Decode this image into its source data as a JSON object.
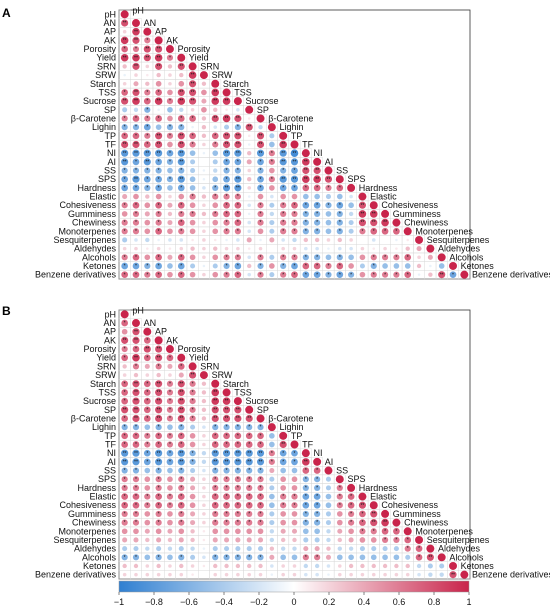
{
  "panels": [
    {
      "letter": "A",
      "variables": [
        "pH",
        "AN",
        "AP",
        "AK",
        "Porosity",
        "Yield",
        "SRN",
        "SRW",
        "Starch",
        "TSS",
        "Sucrose",
        "SP",
        "β-Carotene",
        "Lighin",
        "TP",
        "TF",
        "NI",
        "AI",
        "SS",
        "SPS",
        "Hardness",
        "Elastic",
        "Cohesiveness",
        "Gumminess",
        "Chewiness",
        "Monoterpenes",
        "Sesquiterpenes",
        "Aldehydes",
        "Alcohols",
        "Ketones",
        "Benzene derivatives"
      ]
    },
    {
      "letter": "B",
      "variables": [
        "pH",
        "AN",
        "AP",
        "AK",
        "Porosity",
        "Yield",
        "SRN",
        "SRW",
        "Starch",
        "TSS",
        "Sucrose",
        "SP",
        "β-Carotene",
        "Lighin",
        "TP",
        "TF",
        "NI",
        "AI",
        "SS",
        "SPS",
        "Hardness",
        "Elastic",
        "Cohesiveness",
        "Gumminess",
        "Chewiness",
        "Monoterpenes",
        "Sesquiterpenes",
        "Aldehydes",
        "Alcohols",
        "Ketones",
        "Benzene derivatives"
      ]
    }
  ],
  "chart_data": [
    {
      "type": "heatmap",
      "panel": "A",
      "variables": [
        "pH",
        "AN",
        "AP",
        "AK",
        "Porosity",
        "Yield",
        "SRN",
        "SRW",
        "Starch",
        "TSS",
        "Sucrose",
        "SP",
        "β-Carotene",
        "Lighin",
        "TP",
        "TF",
        "NI",
        "AI",
        "SS",
        "SPS",
        "Hardness",
        "Elastic",
        "Cohesiveness",
        "Gumminess",
        "Chewiness",
        "Monoterpenes",
        "Sesquiterpenes",
        "Aldehydes",
        "Alcohols",
        "Ketones",
        "Benzene derivatives"
      ],
      "color_range": [
        -1,
        1
      ],
      "correlation_matrix": [
        [
          1
        ],
        [
          0.8,
          1
        ],
        [
          0.2,
          0.9,
          1
        ],
        [
          0.9,
          0.8,
          0.6,
          1
        ],
        [
          0.7,
          0.6,
          0.8,
          0.8,
          1
        ],
        [
          0.9,
          0.9,
          0.8,
          0.9,
          0.6,
          1
        ],
        [
          0.3,
          0.8,
          0.2,
          0.8,
          0.3,
          0.8,
          1
        ],
        [
          -0.1,
          0.2,
          0.1,
          0.3,
          0.2,
          0.3,
          0.9,
          1
        ],
        [
          0.2,
          0.4,
          0.3,
          0.5,
          0.2,
          0.5,
          0.8,
          0.3,
          1
        ],
        [
          0.7,
          0.8,
          0.6,
          0.7,
          0.5,
          0.8,
          0.8,
          0.5,
          0.9,
          1
        ],
        [
          0.8,
          0.9,
          0.7,
          0.9,
          0.6,
          0.9,
          0.8,
          0.4,
          0.9,
          0.9,
          1
        ],
        [
          -0.4,
          -0.3,
          -0.6,
          -0.1,
          -0.5,
          -0.3,
          0.2,
          0.5,
          0.3,
          0.1,
          -0.2,
          1
        ],
        [
          0.6,
          0.7,
          0.6,
          0.7,
          0.5,
          0.7,
          0.7,
          0.3,
          0.8,
          0.9,
          0.8,
          0.1,
          1
        ],
        [
          -0.6,
          -0.6,
          -0.7,
          -0.5,
          -0.6,
          -0.6,
          -0.1,
          0.3,
          -0.2,
          -0.4,
          -0.6,
          0.8,
          -0.3,
          1
        ],
        [
          0.7,
          0.7,
          0.6,
          0.8,
          0.6,
          0.8,
          0.7,
          0.3,
          0.7,
          0.8,
          0.8,
          0.1,
          0.8,
          -0.4,
          1
        ],
        [
          0.8,
          0.8,
          0.7,
          0.8,
          0.5,
          0.8,
          0.6,
          0.2,
          0.6,
          0.8,
          0.8,
          -0.1,
          0.8,
          -0.5,
          0.9,
          1
        ],
        [
          -0.8,
          -0.8,
          -0.8,
          -0.8,
          -0.7,
          -0.8,
          -0.5,
          -0.1,
          -0.5,
          -0.8,
          -0.8,
          0.3,
          -0.8,
          0.6,
          -0.8,
          -0.9,
          1
        ],
        [
          -0.8,
          -0.7,
          -0.8,
          -0.7,
          -0.6,
          -0.8,
          -0.4,
          0.0,
          -0.4,
          -0.7,
          -0.7,
          0.4,
          -0.7,
          0.6,
          -0.8,
          -0.8,
          0.9,
          1
        ],
        [
          -0.6,
          -0.6,
          -0.6,
          -0.6,
          -0.5,
          -0.6,
          -0.4,
          -0.1,
          -0.3,
          -0.6,
          -0.6,
          0.2,
          -0.6,
          0.5,
          -0.6,
          -0.7,
          0.8,
          0.8,
          1
        ],
        [
          -0.7,
          -0.8,
          -0.7,
          -0.7,
          -0.6,
          -0.8,
          -0.5,
          -0.1,
          -0.5,
          -0.7,
          -0.8,
          0.3,
          -0.7,
          0.6,
          -0.8,
          -0.8,
          0.9,
          0.9,
          0.8,
          1
        ],
        [
          -0.7,
          -0.7,
          -0.6,
          -0.7,
          -0.5,
          -0.7,
          -0.5,
          -0.2,
          -0.6,
          -0.8,
          -0.8,
          0.2,
          -0.7,
          0.5,
          -0.7,
          -0.7,
          0.7,
          0.7,
          0.6,
          0.7,
          1
        ],
        [
          0.4,
          0.5,
          0.3,
          0.5,
          0.2,
          0.5,
          0.6,
          0.3,
          0.6,
          0.6,
          0.6,
          -0.1,
          0.5,
          -0.2,
          0.5,
          0.5,
          -0.5,
          -0.5,
          -0.4,
          -0.5,
          -0.2,
          1
        ],
        [
          0.6,
          0.7,
          0.5,
          0.7,
          0.4,
          0.7,
          0.5,
          0.2,
          0.5,
          0.7,
          0.7,
          -0.2,
          0.6,
          -0.4,
          0.6,
          0.7,
          -0.7,
          -0.7,
          -0.6,
          -0.7,
          -0.5,
          0.8,
          1
        ],
        [
          0.5,
          0.6,
          0.4,
          0.6,
          0.3,
          0.6,
          0.6,
          0.3,
          0.6,
          0.7,
          0.7,
          -0.1,
          0.6,
          -0.3,
          0.6,
          0.6,
          -0.6,
          -0.6,
          -0.5,
          -0.6,
          -0.3,
          0.9,
          0.9,
          1
        ],
        [
          0.6,
          0.6,
          0.5,
          0.6,
          0.4,
          0.7,
          0.5,
          0.2,
          0.5,
          0.6,
          0.7,
          -0.2,
          0.6,
          -0.4,
          0.6,
          0.6,
          -0.6,
          -0.6,
          -0.5,
          -0.6,
          -0.4,
          0.8,
          0.8,
          0.9,
          1
        ],
        [
          0.6,
          0.6,
          0.5,
          0.7,
          0.5,
          0.6,
          0.5,
          0.2,
          0.5,
          0.6,
          0.6,
          -0.2,
          0.5,
          -0.4,
          0.6,
          0.6,
          -0.6,
          -0.6,
          -0.5,
          -0.6,
          -0.4,
          0.6,
          0.7,
          0.7,
          0.7,
          1
        ],
        [
          -0.4,
          -0.2,
          -0.3,
          -0.1,
          -0.2,
          -0.2,
          0.1,
          0.2,
          0.1,
          -0.1,
          -0.2,
          0.4,
          -0.1,
          0.4,
          -0.2,
          -0.3,
          0.3,
          0.3,
          0.2,
          0.3,
          0.2,
          0.0,
          -0.2,
          0.0,
          -0.1,
          0.1,
          1
        ],
        [
          0.2,
          0.2,
          0.1,
          0.2,
          0.1,
          0.2,
          0.3,
          0.2,
          0.3,
          0.2,
          0.2,
          0.1,
          0.2,
          0.0,
          0.2,
          0.2,
          -0.2,
          -0.2,
          -0.1,
          -0.2,
          -0.2,
          0.2,
          0.1,
          0.2,
          0.1,
          0.3,
          0.4,
          1
        ],
        [
          0.6,
          0.7,
          0.5,
          0.7,
          0.4,
          0.7,
          0.5,
          0.2,
          0.5,
          0.6,
          0.6,
          -0.2,
          0.6,
          -0.4,
          0.6,
          0.6,
          -0.6,
          -0.6,
          -0.5,
          -0.6,
          -0.5,
          0.5,
          0.6,
          0.6,
          0.6,
          0.7,
          0.2,
          0.4,
          1
        ],
        [
          -0.7,
          -0.7,
          -0.6,
          -0.7,
          -0.5,
          -0.7,
          -0.4,
          -0.1,
          -0.4,
          -0.6,
          -0.7,
          0.3,
          -0.6,
          0.5,
          -0.6,
          -0.7,
          0.7,
          0.7,
          0.6,
          0.7,
          0.5,
          -0.4,
          -0.6,
          -0.5,
          -0.5,
          -0.5,
          0.3,
          -0.1,
          -0.5,
          1
        ],
        [
          0.7,
          0.7,
          0.6,
          0.7,
          0.5,
          0.7,
          0.5,
          0.2,
          0.5,
          0.6,
          0.7,
          -0.2,
          0.6,
          -0.4,
          0.6,
          0.7,
          -0.7,
          -0.7,
          -0.6,
          -0.7,
          -0.6,
          0.5,
          0.6,
          0.6,
          0.6,
          0.7,
          -0.1,
          0.3,
          0.8,
          -0.7,
          1
        ]
      ]
    },
    {
      "type": "heatmap",
      "panel": "B",
      "variables": [
        "pH",
        "AN",
        "AP",
        "AK",
        "Porosity",
        "Yield",
        "SRN",
        "SRW",
        "Starch",
        "TSS",
        "Sucrose",
        "SP",
        "β-Carotene",
        "Lighin",
        "TP",
        "TF",
        "NI",
        "AI",
        "SS",
        "SPS",
        "Hardness",
        "Elastic",
        "Cohesiveness",
        "Gumminess",
        "Chewiness",
        "Monoterpenes",
        "Sesquiterpenes",
        "Aldehydes",
        "Alcohols",
        "Ketones",
        "Benzene derivatives"
      ],
      "color_range": [
        -1,
        1
      ],
      "correlation_matrix": [
        [
          1
        ],
        [
          0.7,
          1
        ],
        [
          0.5,
          0.8,
          1
        ],
        [
          0.8,
          0.8,
          0.7,
          1
        ],
        [
          0.6,
          0.7,
          0.8,
          0.8,
          1
        ],
        [
          0.7,
          0.9,
          0.7,
          0.8,
          0.7,
          1
        ],
        [
          0.3,
          0.6,
          0.4,
          0.6,
          0.4,
          0.7,
          1
        ],
        [
          0.2,
          0.3,
          0.2,
          0.3,
          0.2,
          0.4,
          0.8,
          1
        ],
        [
          0.7,
          0.8,
          0.7,
          0.8,
          0.6,
          0.8,
          0.6,
          0.3,
          1
        ],
        [
          0.7,
          0.8,
          0.7,
          0.8,
          0.6,
          0.8,
          0.6,
          0.3,
          0.9,
          1
        ],
        [
          0.7,
          0.8,
          0.7,
          0.8,
          0.6,
          0.8,
          0.6,
          0.3,
          0.9,
          0.9,
          1
        ],
        [
          0.8,
          0.8,
          0.7,
          0.8,
          0.6,
          0.8,
          0.6,
          0.3,
          0.8,
          0.8,
          0.8,
          1
        ],
        [
          0.7,
          0.8,
          0.7,
          0.8,
          0.6,
          0.8,
          0.6,
          0.3,
          0.8,
          0.8,
          0.8,
          0.8,
          1
        ],
        [
          -0.6,
          -0.6,
          -0.5,
          -0.6,
          -0.5,
          -0.6,
          -0.4,
          -0.2,
          -0.6,
          -0.6,
          -0.6,
          -0.6,
          -0.6,
          1
        ],
        [
          0.7,
          0.7,
          0.6,
          0.7,
          0.6,
          0.7,
          0.5,
          0.2,
          0.7,
          0.7,
          0.7,
          0.7,
          0.7,
          -0.5,
          1
        ],
        [
          0.7,
          0.7,
          0.6,
          0.7,
          0.6,
          0.7,
          0.5,
          0.2,
          0.7,
          0.7,
          0.7,
          0.7,
          0.7,
          -0.5,
          0.8,
          1
        ],
        [
          -0.8,
          -0.8,
          -0.7,
          -0.8,
          -0.7,
          -0.8,
          -0.6,
          -0.3,
          -0.8,
          -0.8,
          -0.8,
          -0.8,
          -0.8,
          0.6,
          -0.7,
          -0.7,
          1
        ],
        [
          -0.8,
          -0.8,
          -0.7,
          -0.8,
          -0.7,
          -0.8,
          -0.6,
          -0.3,
          -0.8,
          -0.8,
          -0.8,
          -0.8,
          -0.8,
          0.6,
          -0.7,
          -0.7,
          0.9,
          1
        ],
        [
          -0.6,
          -0.6,
          -0.5,
          -0.6,
          -0.5,
          -0.6,
          -0.4,
          -0.2,
          -0.6,
          -0.6,
          -0.6,
          -0.6,
          -0.6,
          0.4,
          -0.5,
          -0.5,
          0.7,
          0.7,
          1
        ],
        [
          0.6,
          0.6,
          0.5,
          0.6,
          0.5,
          0.6,
          0.4,
          0.2,
          0.6,
          0.6,
          0.6,
          0.6,
          0.6,
          -0.4,
          0.5,
          0.5,
          -0.6,
          -0.6,
          -0.4,
          1
        ],
        [
          0.6,
          0.6,
          0.5,
          0.6,
          0.5,
          0.6,
          0.4,
          0.2,
          0.6,
          0.6,
          0.6,
          0.6,
          0.6,
          -0.4,
          0.5,
          0.5,
          -0.6,
          -0.6,
          -0.4,
          0.6,
          1
        ],
        [
          0.7,
          0.7,
          0.6,
          0.7,
          0.6,
          0.7,
          0.5,
          0.2,
          0.7,
          0.7,
          0.7,
          0.7,
          0.7,
          -0.5,
          0.6,
          0.6,
          -0.7,
          -0.7,
          -0.5,
          0.6,
          0.7,
          1
        ],
        [
          0.7,
          0.7,
          0.6,
          0.7,
          0.6,
          0.7,
          0.5,
          0.2,
          0.7,
          0.7,
          0.7,
          0.7,
          0.7,
          -0.5,
          0.6,
          0.6,
          -0.7,
          -0.7,
          -0.5,
          0.6,
          0.7,
          0.8,
          1
        ],
        [
          0.6,
          0.6,
          0.5,
          0.6,
          0.5,
          0.6,
          0.4,
          0.2,
          0.6,
          0.6,
          0.6,
          0.6,
          0.6,
          -0.4,
          0.5,
          0.5,
          -0.6,
          -0.6,
          -0.4,
          0.5,
          0.6,
          0.7,
          0.8,
          1
        ],
        [
          0.6,
          0.6,
          0.5,
          0.6,
          0.5,
          0.6,
          0.4,
          0.2,
          0.6,
          0.6,
          0.6,
          0.6,
          0.6,
          -0.4,
          0.5,
          0.5,
          -0.6,
          -0.6,
          -0.4,
          0.5,
          0.6,
          0.7,
          0.8,
          0.9,
          1
        ],
        [
          0.5,
          0.5,
          0.4,
          0.5,
          0.4,
          0.5,
          0.3,
          0.1,
          0.5,
          0.5,
          0.5,
          0.5,
          0.5,
          -0.3,
          0.4,
          0.4,
          -0.5,
          -0.5,
          -0.3,
          0.4,
          0.5,
          0.6,
          0.6,
          0.7,
          0.7,
          1
        ],
        [
          0.4,
          0.4,
          0.3,
          0.4,
          0.3,
          0.4,
          0.3,
          0.1,
          0.4,
          0.4,
          0.4,
          0.4,
          0.4,
          -0.3,
          0.3,
          0.3,
          -0.4,
          -0.4,
          -0.3,
          0.3,
          0.4,
          0.5,
          0.5,
          0.6,
          0.6,
          0.7,
          1
        ],
        [
          -0.4,
          -0.4,
          -0.3,
          -0.4,
          -0.3,
          -0.4,
          -0.3,
          -0.1,
          -0.4,
          -0.4,
          -0.4,
          -0.4,
          -0.4,
          0.3,
          -0.3,
          -0.3,
          0.4,
          0.4,
          0.3,
          -0.3,
          -0.3,
          -0.4,
          -0.4,
          -0.4,
          -0.4,
          0.6,
          0.7,
          1
        ],
        [
          -0.6,
          -0.6,
          -0.5,
          -0.6,
          -0.5,
          -0.6,
          -0.4,
          -0.2,
          -0.6,
          -0.6,
          -0.6,
          -0.6,
          -0.6,
          0.4,
          -0.5,
          -0.5,
          0.6,
          0.6,
          0.4,
          -0.5,
          -0.5,
          -0.5,
          -0.5,
          -0.5,
          -0.5,
          -0.4,
          0.7,
          0.8,
          1
        ],
        [
          0.3,
          0.3,
          0.2,
          0.3,
          0.2,
          0.3,
          0.2,
          0.1,
          0.3,
          0.3,
          0.3,
          0.3,
          0.3,
          -0.2,
          0.2,
          0.2,
          -0.3,
          -0.3,
          -0.2,
          0.2,
          0.3,
          0.3,
          0.3,
          0.3,
          0.3,
          0.3,
          -0.3,
          -0.4,
          -0.4,
          1
        ],
        [
          0.2,
          0.2,
          0.2,
          0.2,
          0.2,
          0.2,
          0.1,
          0.0,
          0.2,
          0.2,
          0.2,
          0.2,
          0.2,
          -0.1,
          0.2,
          0.2,
          -0.2,
          -0.2,
          -0.1,
          0.2,
          0.2,
          0.2,
          0.2,
          0.2,
          0.2,
          0.2,
          -0.2,
          -0.3,
          -0.3,
          0.8,
          1
        ]
      ]
    }
  ],
  "colorbar": {
    "ticks": [
      "−1",
      "−0.8",
      "−0.6",
      "−0.4",
      "−0.2",
      "0",
      "0.2",
      "0.4",
      "0.6",
      "0.8",
      "1"
    ],
    "colors": {
      "negative": "#2f7fd1",
      "neutral": "#ffffff",
      "positive": "#c9244b"
    }
  }
}
